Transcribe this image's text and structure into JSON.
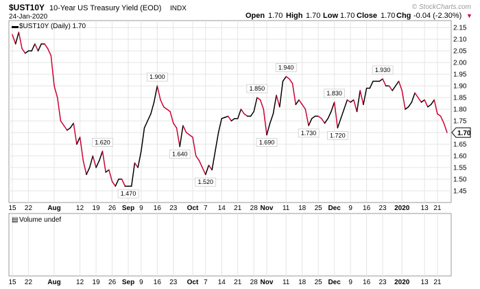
{
  "header": {
    "symbol": "$UST10Y",
    "name": "10-Year US Treasury Yield (EOD)",
    "exchange": "INDX",
    "date": "24-Jan-2020",
    "open_label": "Open",
    "open": "1.70",
    "high_label": "High",
    "high": "1.70",
    "low_label": "Low",
    "low": "1.70",
    "close_label": "Close",
    "close": "1.70",
    "chg_label": "Chg",
    "chg": "-0.04 (-2.30%)",
    "chg_arrow": "▼",
    "copyright": "© StockCharts.com"
  },
  "colors": {
    "up": "#000000",
    "down": "#cc0033",
    "grid": "#e4e4e4",
    "frame": "#999999"
  },
  "chart_data": {
    "type": "line",
    "legend": "$UST10Y (Daily) 1.70",
    "last_value_label": "1.70",
    "ylim": [
      1.4,
      2.18
    ],
    "yticks": [
      1.45,
      1.5,
      1.55,
      1.6,
      1.65,
      1.7,
      1.75,
      1.8,
      1.85,
      1.9,
      1.95,
      2.0,
      2.05,
      2.1,
      2.15
    ],
    "ytick_labels": [
      "1.45",
      "1.50",
      "1.55",
      "1.60",
      "1.65",
      "1.70",
      "1.75",
      "1.80",
      "1.85",
      "1.90",
      "1.95",
      "2.00",
      "2.05",
      "2.10",
      "2.15"
    ],
    "xticks": [
      {
        "label": "15",
        "i": 0
      },
      {
        "label": "22",
        "i": 5
      },
      {
        "label": "Aug",
        "i": 13,
        "bold": true
      },
      {
        "label": "12",
        "i": 21
      },
      {
        "label": "19",
        "i": 26
      },
      {
        "label": "26",
        "i": 31
      },
      {
        "label": "Sep",
        "i": 36,
        "bold": true
      },
      {
        "label": "9",
        "i": 40
      },
      {
        "label": "16",
        "i": 45
      },
      {
        "label": "23",
        "i": 50
      },
      {
        "label": "Oct",
        "i": 56,
        "bold": true
      },
      {
        "label": "7",
        "i": 60
      },
      {
        "label": "14",
        "i": 65
      },
      {
        "label": "21",
        "i": 70
      },
      {
        "label": "28",
        "i": 75
      },
      {
        "label": "Nov",
        "i": 79,
        "bold": true
      },
      {
        "label": "11",
        "i": 85
      },
      {
        "label": "18",
        "i": 90
      },
      {
        "label": "25",
        "i": 95
      },
      {
        "label": "Dec",
        "i": 100,
        "bold": true
      },
      {
        "label": "9",
        "i": 105
      },
      {
        "label": "16",
        "i": 110
      },
      {
        "label": "23",
        "i": 115
      },
      {
        "label": "2020",
        "i": 121,
        "bold": true
      },
      {
        "label": "13",
        "i": 128
      },
      {
        "label": "21",
        "i": 132
      }
    ],
    "values": [
      2.12,
      2.08,
      2.13,
      2.06,
      2.04,
      2.05,
      2.05,
      2.08,
      2.05,
      2.08,
      2.08,
      2.06,
      2.03,
      1.9,
      1.85,
      1.75,
      1.73,
      1.71,
      1.72,
      1.74,
      1.65,
      1.68,
      1.58,
      1.52,
      1.55,
      1.6,
      1.55,
      1.58,
      1.62,
      1.53,
      1.54,
      1.49,
      1.47,
      1.5,
      1.5,
      1.47,
      1.47,
      1.47,
      1.57,
      1.55,
      1.62,
      1.72,
      1.75,
      1.78,
      1.83,
      1.9,
      1.84,
      1.81,
      1.8,
      1.79,
      1.74,
      1.72,
      1.64,
      1.73,
      1.7,
      1.69,
      1.68,
      1.6,
      1.58,
      1.55,
      1.52,
      1.56,
      1.54,
      1.62,
      1.7,
      1.76,
      1.765,
      1.77,
      1.75,
      1.76,
      1.76,
      1.8,
      1.78,
      1.77,
      1.77,
      1.79,
      1.85,
      1.84,
      1.8,
      1.69,
      1.74,
      1.78,
      1.86,
      1.81,
      1.92,
      1.94,
      1.93,
      1.91,
      1.82,
      1.84,
      1.82,
      1.8,
      1.73,
      1.76,
      1.77,
      1.77,
      1.76,
      1.74,
      1.76,
      1.79,
      1.83,
      1.72,
      1.76,
      1.8,
      1.84,
      1.83,
      1.84,
      1.79,
      1.88,
      1.82,
      1.89,
      1.89,
      1.92,
      1.92,
      1.92,
      1.93,
      1.9,
      1.9,
      1.88,
      1.9,
      1.92,
      1.88,
      1.8,
      1.81,
      1.83,
      1.87,
      1.85,
      1.83,
      1.84,
      1.81,
      1.82,
      1.84,
      1.78,
      1.77,
      1.74,
      1.7
    ],
    "annotations": [
      {
        "label": "1.620",
        "i": 28
      },
      {
        "label": "1.470",
        "i": 36
      },
      {
        "label": "1.900",
        "i": 45
      },
      {
        "label": "1.640",
        "i": 52
      },
      {
        "label": "1.520",
        "i": 60
      },
      {
        "label": "1.850",
        "i": 76
      },
      {
        "label": "1.690",
        "i": 79
      },
      {
        "label": "1.940",
        "i": 85
      },
      {
        "label": "1.730",
        "i": 92
      },
      {
        "label": "1.830",
        "i": 100
      },
      {
        "label": "1.720",
        "i": 101
      },
      {
        "label": "1.930",
        "i": 115
      }
    ]
  },
  "volume_panel": {
    "legend": "Volume undef"
  }
}
